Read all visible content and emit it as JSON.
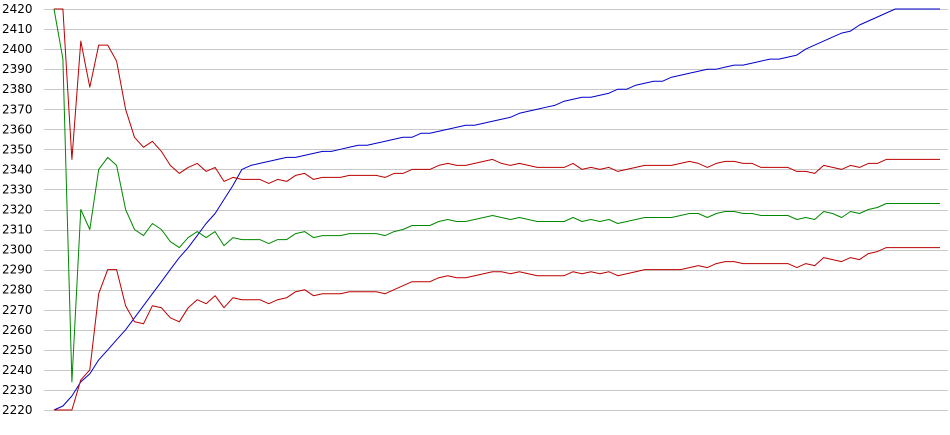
{
  "chart_data": {
    "type": "line",
    "title": "",
    "xlabel": "",
    "ylabel": "",
    "ylim": [
      2220,
      2420
    ],
    "yticks": [
      2220,
      2230,
      2240,
      2250,
      2260,
      2270,
      2280,
      2290,
      2300,
      2310,
      2320,
      2330,
      2340,
      2350,
      2360,
      2370,
      2380,
      2390,
      2400,
      2410,
      2420
    ],
    "grid": "horizontal",
    "legend": "none",
    "x": [
      0,
      1,
      2,
      3,
      4,
      5,
      6,
      7,
      8,
      9,
      10,
      11,
      12,
      13,
      14,
      15,
      16,
      17,
      18,
      19,
      20,
      21,
      22,
      23,
      24,
      25,
      26,
      27,
      28,
      29,
      30,
      31,
      32,
      33,
      34,
      35,
      36,
      37,
      38,
      39,
      40,
      41,
      42,
      43,
      44,
      45,
      46,
      47,
      48,
      49,
      50,
      51,
      52,
      53,
      54,
      55,
      56,
      57,
      58,
      59,
      60,
      61,
      62,
      63,
      64,
      65,
      66,
      67,
      68,
      69,
      70,
      71,
      72,
      73,
      74,
      75,
      76,
      77,
      78,
      79,
      80,
      81,
      82,
      83,
      84,
      85,
      86,
      87,
      88,
      89,
      90,
      91,
      92,
      93,
      94,
      95,
      96,
      97,
      98,
      99
    ],
    "series": [
      {
        "color": "#0000cc",
        "values": [
          2220,
          2222,
          2227,
          2234,
          2238,
          2245,
          2250,
          2255,
          2260,
          2266,
          2272,
          2278,
          2284,
          2290,
          2296,
          2301,
          2307,
          2313,
          2318,
          2325,
          2332,
          2340,
          2342,
          2343,
          2344,
          2345,
          2346,
          2346,
          2347,
          2348,
          2349,
          2349,
          2350,
          2351,
          2352,
          2352,
          2353,
          2354,
          2355,
          2356,
          2356,
          2358,
          2358,
          2359,
          2360,
          2361,
          2362,
          2362,
          2363,
          2364,
          2365,
          2366,
          2368,
          2369,
          2370,
          2371,
          2372,
          2374,
          2375,
          2376,
          2376,
          2377,
          2378,
          2380,
          2380,
          2382,
          2383,
          2384,
          2384,
          2386,
          2387,
          2388,
          2389,
          2390,
          2390,
          2391,
          2392,
          2392,
          2393,
          2394,
          2395,
          2395,
          2396,
          2397,
          2400,
          2402,
          2404,
          2406,
          2408,
          2409,
          2412,
          2414,
          2416,
          2418,
          2420,
          2420,
          2420,
          2420,
          2420,
          2420
        ]
      },
      {
        "color": "#bb0000",
        "values": [
          2420,
          2420,
          2345,
          2404,
          2381,
          2402,
          2402,
          2394,
          2370,
          2356,
          2351,
          2354,
          2349,
          2342,
          2338,
          2341,
          2343,
          2339,
          2341,
          2334,
          2336,
          2335,
          2335,
          2335,
          2333,
          2335,
          2334,
          2337,
          2338,
          2335,
          2336,
          2336,
          2336,
          2337,
          2337,
          2337,
          2337,
          2336,
          2338,
          2338,
          2340,
          2340,
          2340,
          2342,
          2343,
          2342,
          2342,
          2343,
          2344,
          2345,
          2343,
          2342,
          2343,
          2342,
          2341,
          2341,
          2341,
          2341,
          2343,
          2340,
          2341,
          2340,
          2341,
          2339,
          2340,
          2341,
          2342,
          2342,
          2342,
          2342,
          2343,
          2344,
          2343,
          2341,
          2343,
          2344,
          2344,
          2343,
          2343,
          2341,
          2341,
          2341,
          2341,
          2339,
          2339,
          2338,
          2342,
          2341,
          2340,
          2342,
          2341,
          2343,
          2343,
          2345,
          2345,
          2345,
          2345,
          2345,
          2345,
          2345
        ]
      },
      {
        "color": "#008800",
        "values": [
          2420,
          2395,
          2234,
          2320,
          2310,
          2340,
          2346,
          2342,
          2320,
          2310,
          2307,
          2313,
          2310,
          2304,
          2301,
          2306,
          2309,
          2306,
          2309,
          2302,
          2306,
          2305,
          2305,
          2305,
          2303,
          2305,
          2305,
          2308,
          2309,
          2306,
          2307,
          2307,
          2307,
          2308,
          2308,
          2308,
          2308,
          2307,
          2309,
          2310,
          2312,
          2312,
          2312,
          2314,
          2315,
          2314,
          2314,
          2315,
          2316,
          2317,
          2316,
          2315,
          2316,
          2315,
          2314,
          2314,
          2314,
          2314,
          2316,
          2314,
          2315,
          2314,
          2315,
          2313,
          2314,
          2315,
          2316,
          2316,
          2316,
          2316,
          2317,
          2318,
          2318,
          2316,
          2318,
          2319,
          2319,
          2318,
          2318,
          2317,
          2317,
          2317,
          2317,
          2315,
          2316,
          2315,
          2319,
          2318,
          2316,
          2319,
          2318,
          2320,
          2321,
          2323,
          2323,
          2323,
          2323,
          2323,
          2323,
          2323
        ]
      },
      {
        "color": "#bb0000",
        "values": [
          2220,
          2220,
          2220,
          2235,
          2240,
          2278,
          2290,
          2290,
          2272,
          2264,
          2263,
          2272,
          2271,
          2266,
          2264,
          2271,
          2275,
          2273,
          2277,
          2271,
          2276,
          2275,
          2275,
          2275,
          2273,
          2275,
          2276,
          2279,
          2280,
          2277,
          2278,
          2278,
          2278,
          2279,
          2279,
          2279,
          2279,
          2278,
          2280,
          2282,
          2284,
          2284,
          2284,
          2286,
          2287,
          2286,
          2286,
          2287,
          2288,
          2289,
          2289,
          2288,
          2289,
          2288,
          2287,
          2287,
          2287,
          2287,
          2289,
          2288,
          2289,
          2288,
          2289,
          2287,
          2288,
          2289,
          2290,
          2290,
          2290,
          2290,
          2290,
          2291,
          2292,
          2291,
          2293,
          2294,
          2294,
          2293,
          2293,
          2293,
          2293,
          2293,
          2293,
          2291,
          2293,
          2292,
          2296,
          2295,
          2294,
          2296,
          2295,
          2298,
          2299,
          2301,
          2301,
          2301,
          2301,
          2301,
          2301,
          2301
        ]
      }
    ]
  }
}
